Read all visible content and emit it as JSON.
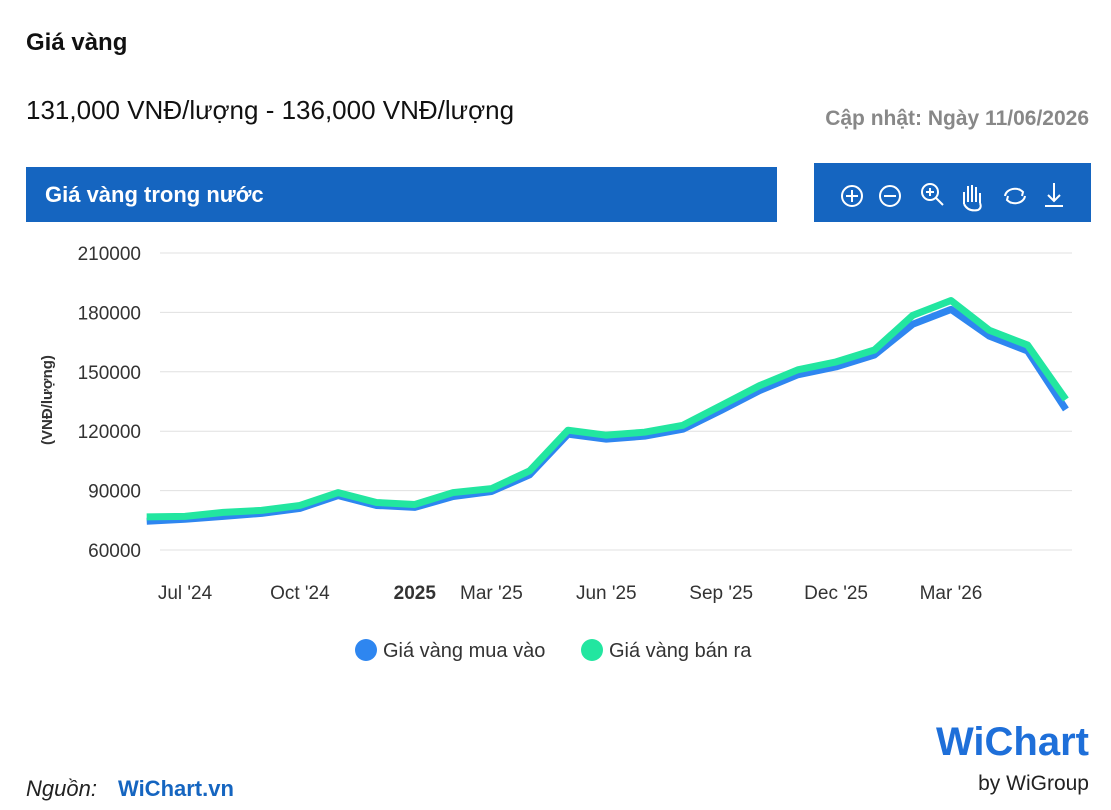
{
  "header": {
    "title": "Giá vàng",
    "price_range": "131,000 VNĐ/lượng - 136,000 VNĐ/lượng",
    "updated": "Cập nhật: Ngày 11/06/2026"
  },
  "panel_title": "Giá vàng trong nước",
  "chart_data": {
    "type": "line",
    "y_label": "(VNĐ/lượng)",
    "x": [
      "2024-06",
      "2024-07",
      "2024-08",
      "2024-09",
      "2024-10",
      "2024-11",
      "2024-12",
      "2025-01",
      "2025-02",
      "2025-03",
      "2025-04",
      "2025-05",
      "2025-06",
      "2025-07",
      "2025-08",
      "2025-09",
      "2025-10",
      "2025-11",
      "2025-12",
      "2026-01",
      "2026-02",
      "2026-03",
      "2026-04",
      "2026-05",
      "2026-06"
    ],
    "series": [
      {
        "name": "Giá vàng mua vào",
        "color": "#2e86f0",
        "values": [
          74500,
          75500,
          77000,
          78500,
          81000,
          87500,
          82500,
          81500,
          87000,
          89500,
          98000,
          118500,
          116000,
          117500,
          121000,
          130500,
          140500,
          148500,
          152500,
          158500,
          174000,
          181500,
          168000,
          160500,
          131000
        ]
      },
      {
        "name": "Giá vàng bán ra",
        "color": "#22e6a0",
        "values": [
          76700,
          77000,
          79000,
          80000,
          82500,
          89000,
          84000,
          83000,
          89000,
          91000,
          100000,
          120500,
          118000,
          119500,
          123000,
          133000,
          143000,
          151000,
          155000,
          161000,
          178500,
          186000,
          171000,
          163500,
          136000
        ]
      }
    ],
    "ylim": [
      60000,
      210000
    ],
    "yticks": [
      60000,
      90000,
      120000,
      150000,
      180000,
      210000
    ],
    "xticks": [
      {
        "value": "2024-07",
        "label": "Jul '24"
      },
      {
        "value": "2024-10",
        "label": "Oct '24"
      },
      {
        "value": "2025-01",
        "label": "2025"
      },
      {
        "value": "2025-03",
        "label": "Mar '25"
      },
      {
        "value": "2025-06",
        "label": "Jun '25"
      },
      {
        "value": "2025-09",
        "label": "Sep '25"
      },
      {
        "value": "2025-12",
        "label": "Dec '25"
      },
      {
        "value": "2026-03",
        "label": "Mar '26"
      }
    ],
    "grid": true
  },
  "footer": {
    "source_label": "Nguồn:",
    "source_link": "WiChart.vn"
  },
  "logo": {
    "name": "WiChart",
    "by": "by WiGroup"
  }
}
